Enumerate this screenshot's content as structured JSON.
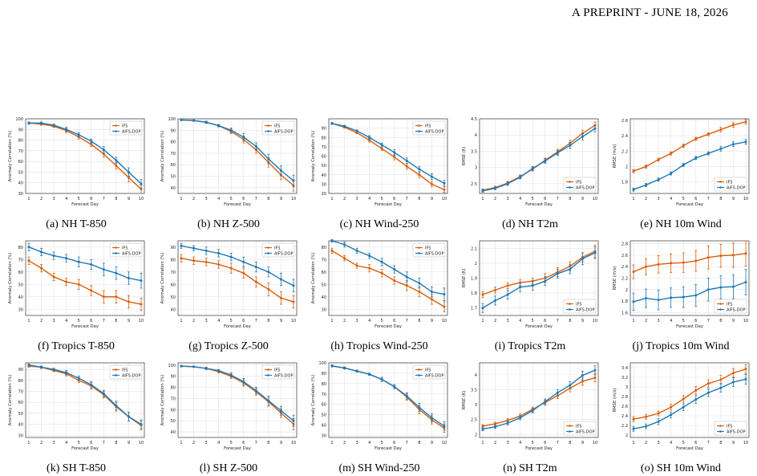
{
  "header": {
    "text": "A PREPRINT - JUNE 18, 2026"
  },
  "colors": {
    "ifs": "#d95f0e",
    "aifs": "#1f78b4"
  },
  "common": {
    "xlabel": "Forecast Day",
    "legend": [
      "IFS",
      "AIFS-DOP"
    ]
  },
  "chart_data": [
    {
      "type": "line",
      "caption": "(a) NH T-850",
      "ylabel": "Anomaly Correlation (%)",
      "ylim": [
        30,
        100
      ],
      "yticks": [
        30,
        40,
        50,
        60,
        70,
        80,
        90,
        100
      ],
      "x": [
        1,
        2,
        3,
        4,
        5,
        6,
        7,
        8,
        9,
        10
      ],
      "series": [
        {
          "name": "IFS",
          "values": [
            96,
            95,
            93,
            89,
            83,
            76,
            67,
            56,
            45,
            34
          ],
          "err": [
            1,
            1,
            1,
            2,
            2,
            2,
            3,
            3,
            4,
            4
          ]
        },
        {
          "name": "AIFS-DOP",
          "values": [
            96,
            96,
            94,
            90,
            85,
            79,
            71,
            61,
            50,
            39
          ],
          "err": [
            1,
            1,
            1,
            2,
            2,
            2,
            3,
            3,
            4,
            4
          ]
        }
      ]
    },
    {
      "type": "line",
      "caption": "(b) NH Z-500",
      "ylabel": "Anomaly Correlation (%)",
      "ylim": [
        35,
        100
      ],
      "yticks": [
        40,
        50,
        60,
        70,
        80,
        90,
        100
      ],
      "x": [
        1,
        2,
        3,
        4,
        5,
        6,
        7,
        8,
        9,
        10
      ],
      "series": [
        {
          "name": "IFS",
          "values": [
            99,
            98.5,
            97,
            94,
            89,
            82,
            73,
            62,
            51,
            42
          ],
          "err": [
            0.5,
            0.5,
            1,
            1,
            2,
            3,
            3,
            4,
            4,
            5
          ]
        },
        {
          "name": "AIFS-DOP",
          "values": [
            99,
            98.5,
            97,
            94,
            90,
            84,
            76,
            65,
            55,
            46
          ],
          "err": [
            0.5,
            0.5,
            1,
            1,
            2,
            3,
            3,
            4,
            4,
            5
          ]
        }
      ]
    },
    {
      "type": "line",
      "caption": "(c) NH Wind-250",
      "ylabel": "Anomaly Correlation (%)",
      "ylim": [
        20,
        100
      ],
      "yticks": [
        20,
        30,
        40,
        50,
        60,
        70,
        80,
        90
      ],
      "x": [
        1,
        2,
        3,
        4,
        5,
        6,
        7,
        8,
        9,
        10
      ],
      "series": [
        {
          "name": "IFS",
          "values": [
            95,
            91,
            85,
            77,
            68,
            59,
            49,
            40,
            30,
            24
          ],
          "err": [
            1,
            1,
            1,
            2,
            2,
            3,
            3,
            3,
            3,
            3
          ]
        },
        {
          "name": "AIFS-DOP",
          "values": [
            95,
            92,
            87,
            80,
            72,
            64,
            55,
            46,
            38,
            31
          ],
          "err": [
            1,
            1,
            1,
            2,
            2,
            3,
            3,
            3,
            3,
            3
          ]
        }
      ]
    },
    {
      "type": "line",
      "caption": "(d) NH T2m",
      "ylabel": "RMSE (K)",
      "ylim": [
        2.2,
        4.5
      ],
      "yticks": [
        2.5,
        3.0,
        3.5,
        4.0,
        4.5
      ],
      "x": [
        1,
        2,
        3,
        4,
        5,
        6,
        7,
        8,
        9,
        10
      ],
      "series": [
        {
          "name": "IFS",
          "values": [
            2.3,
            2.38,
            2.52,
            2.72,
            2.95,
            3.22,
            3.48,
            3.75,
            4.05,
            4.3
          ],
          "err": [
            0.04,
            0.04,
            0.05,
            0.05,
            0.06,
            0.07,
            0.08,
            0.09,
            0.1,
            0.1
          ]
        },
        {
          "name": "AIFS-DOP",
          "values": [
            2.28,
            2.36,
            2.5,
            2.7,
            2.97,
            3.2,
            3.45,
            3.68,
            3.95,
            4.2
          ],
          "err": [
            0.04,
            0.04,
            0.05,
            0.05,
            0.06,
            0.07,
            0.08,
            0.09,
            0.1,
            0.1
          ]
        }
      ]
    },
    {
      "type": "line",
      "caption": "(e) NH 10m Wind",
      "ylabel": "RMSE (m/s)",
      "ylim": [
        1.65,
        2.62
      ],
      "yticks": [
        1.8,
        2.0,
        2.2,
        2.4,
        2.6
      ],
      "x": [
        1,
        2,
        3,
        4,
        5,
        6,
        7,
        8,
        9,
        10
      ],
      "series": [
        {
          "name": "IFS",
          "values": [
            1.94,
            2.0,
            2.09,
            2.17,
            2.27,
            2.36,
            2.42,
            2.48,
            2.54,
            2.58
          ],
          "err": [
            0.02,
            0.02,
            0.02,
            0.02,
            0.02,
            0.02,
            0.02,
            0.03,
            0.03,
            0.03
          ]
        },
        {
          "name": "AIFS-DOP",
          "values": [
            1.7,
            1.76,
            1.83,
            1.91,
            2.02,
            2.11,
            2.17,
            2.23,
            2.29,
            2.32
          ],
          "err": [
            0.02,
            0.02,
            0.02,
            0.02,
            0.02,
            0.02,
            0.02,
            0.03,
            0.03,
            0.03
          ]
        }
      ]
    },
    {
      "type": "line",
      "caption": "(f) Tropics T-850",
      "ylabel": "Anomaly Correlation (%)",
      "ylim": [
        25,
        85
      ],
      "yticks": [
        30,
        40,
        50,
        60,
        70,
        80
      ],
      "x": [
        1,
        2,
        3,
        4,
        5,
        6,
        7,
        8,
        9,
        10
      ],
      "series": [
        {
          "name": "IFS",
          "values": [
            69,
            63,
            56,
            52,
            50,
            45,
            40,
            40,
            36,
            34
          ],
          "err": [
            3,
            3,
            3,
            3,
            4,
            4,
            5,
            5,
            5,
            5
          ]
        },
        {
          "name": "AIFS-DOP",
          "values": [
            80,
            76,
            73,
            71,
            68,
            66,
            62,
            59,
            55,
            53
          ],
          "err": [
            3,
            3,
            3,
            3,
            4,
            4,
            5,
            5,
            5,
            6
          ]
        }
      ]
    },
    {
      "type": "line",
      "caption": "(g) Tropics Z-500",
      "ylabel": "Anomaly Correlation (%)",
      "ylim": [
        35,
        95
      ],
      "yticks": [
        40,
        50,
        60,
        70,
        80,
        90
      ],
      "x": [
        1,
        2,
        3,
        4,
        5,
        6,
        7,
        8,
        9,
        10
      ],
      "series": [
        {
          "name": "IFS",
          "values": [
            81,
            79,
            78,
            76,
            73,
            69,
            62,
            56,
            49,
            46
          ],
          "err": [
            3,
            3,
            3,
            3,
            4,
            4,
            4,
            5,
            5,
            5
          ]
        },
        {
          "name": "AIFS-DOP",
          "values": [
            91,
            89,
            87,
            85,
            82,
            78,
            74,
            70,
            64,
            59
          ],
          "err": [
            2,
            2,
            3,
            3,
            3,
            4,
            4,
            4,
            5,
            5
          ]
        }
      ]
    },
    {
      "type": "line",
      "caption": "(h) Tropics Wind-250",
      "ylabel": "Anomaly Correlation (%)",
      "ylim": [
        25,
        85
      ],
      "yticks": [
        30,
        40,
        50,
        60,
        70,
        80
      ],
      "x": [
        1,
        2,
        3,
        4,
        5,
        6,
        7,
        8,
        9,
        10
      ],
      "series": [
        {
          "name": "IFS",
          "values": [
            77,
            71,
            65,
            63,
            59,
            53,
            49,
            44,
            38,
            32
          ],
          "err": [
            2,
            2,
            2,
            3,
            3,
            3,
            4,
            4,
            4,
            4
          ]
        },
        {
          "name": "AIFS-DOP",
          "values": [
            85,
            82,
            77,
            73,
            68,
            62,
            56,
            51,
            44,
            42
          ],
          "err": [
            1,
            2,
            2,
            2,
            3,
            3,
            4,
            4,
            4,
            5
          ]
        }
      ]
    },
    {
      "type": "line",
      "caption": "(i) Tropics T2m",
      "ylabel": "RMSE (K)",
      "ylim": [
        1.65,
        2.15
      ],
      "yticks": [
        1.7,
        1.8,
        1.9,
        2.0,
        2.1
      ],
      "x": [
        1,
        2,
        3,
        4,
        5,
        6,
        7,
        8,
        9,
        10
      ],
      "series": [
        {
          "name": "IFS",
          "values": [
            1.79,
            1.82,
            1.85,
            1.87,
            1.88,
            1.9,
            1.94,
            1.98,
            2.04,
            2.08
          ],
          "err": [
            0.02,
            0.02,
            0.02,
            0.02,
            0.02,
            0.03,
            0.03,
            0.03,
            0.03,
            0.04
          ]
        },
        {
          "name": "AIFS-DOP",
          "values": [
            1.7,
            1.75,
            1.79,
            1.84,
            1.85,
            1.88,
            1.93,
            1.96,
            2.03,
            2.07
          ],
          "err": [
            0.03,
            0.03,
            0.03,
            0.03,
            0.03,
            0.03,
            0.03,
            0.03,
            0.04,
            0.04
          ]
        }
      ]
    },
    {
      "type": "line",
      "caption": "(j) Tropics 10m Wind",
      "ylabel": "RMSE (m/s)",
      "ylim": [
        1.55,
        2.85
      ],
      "yticks": [
        1.6,
        1.8,
        2.0,
        2.2,
        2.4,
        2.6,
        2.8
      ],
      "x": [
        1,
        2,
        3,
        4,
        5,
        6,
        7,
        8,
        9,
        10
      ],
      "series": [
        {
          "name": "IFS",
          "values": [
            2.31,
            2.4,
            2.44,
            2.46,
            2.47,
            2.5,
            2.56,
            2.59,
            2.6,
            2.63
          ],
          "err": [
            0.12,
            0.14,
            0.15,
            0.16,
            0.17,
            0.18,
            0.2,
            0.2,
            0.21,
            0.22
          ]
        },
        {
          "name": "AIFS-DOP",
          "values": [
            1.79,
            1.85,
            1.82,
            1.86,
            1.87,
            1.9,
            2.0,
            2.04,
            2.05,
            2.13
          ],
          "err": [
            0.15,
            0.16,
            0.17,
            0.17,
            0.18,
            0.19,
            0.2,
            0.2,
            0.21,
            0.22
          ]
        }
      ]
    },
    {
      "type": "line",
      "caption": "(k) SH T-850",
      "ylabel": "Anomaly Correlation (%)",
      "ylim": [
        28,
        96
      ],
      "yticks": [
        30,
        40,
        50,
        60,
        70,
        80,
        90
      ],
      "x": [
        1,
        2,
        3,
        4,
        5,
        6,
        7,
        8,
        9,
        10
      ],
      "series": [
        {
          "name": "IFS",
          "values": [
            93,
            92,
            89,
            86,
            80,
            75,
            67,
            56,
            47,
            39
          ],
          "err": [
            1,
            1,
            1,
            2,
            2,
            3,
            3,
            4,
            4,
            4
          ]
        },
        {
          "name": "AIFS-DOP",
          "values": [
            94,
            92,
            90,
            87,
            82,
            76,
            68,
            57,
            47,
            40
          ],
          "err": [
            1,
            1,
            1,
            2,
            2,
            3,
            3,
            4,
            4,
            4
          ]
        }
      ]
    },
    {
      "type": "line",
      "caption": "(l) SH Z-500",
      "ylabel": "Anomaly Correlation (%)",
      "ylim": [
        35,
        102
      ],
      "yticks": [
        40,
        50,
        60,
        70,
        80,
        90,
        100
      ],
      "x": [
        1,
        2,
        3,
        4,
        5,
        6,
        7,
        8,
        9,
        10
      ],
      "series": [
        {
          "name": "IFS",
          "values": [
            99,
            98.5,
            97,
            94,
            90,
            84,
            76,
            67,
            57,
            47
          ],
          "err": [
            0.5,
            0.5,
            1,
            1,
            2,
            3,
            3,
            4,
            4,
            5
          ]
        },
        {
          "name": "AIFS-DOP",
          "values": [
            99,
            98.5,
            97,
            95,
            91,
            85,
            77,
            68,
            59,
            50
          ],
          "err": [
            0.5,
            0.5,
            1,
            1,
            2,
            3,
            3,
            4,
            4,
            5
          ]
        }
      ]
    },
    {
      "type": "line",
      "caption": "(m) SH Wind-250",
      "ylabel": "Anomaly Correlation (%)",
      "ylim": [
        28,
        100
      ],
      "yticks": [
        30,
        40,
        50,
        60,
        70,
        80,
        90,
        100
      ],
      "x": [
        1,
        2,
        3,
        4,
        5,
        6,
        7,
        8,
        9,
        10
      ],
      "series": [
        {
          "name": "IFS",
          "values": [
            97,
            95,
            92,
            89,
            84,
            77,
            67,
            55,
            45,
            37
          ],
          "err": [
            1,
            1,
            1,
            1,
            2,
            2,
            3,
            4,
            4,
            4
          ]
        },
        {
          "name": "AIFS-DOP",
          "values": [
            97,
            95,
            92,
            89,
            84,
            77,
            68,
            57,
            47,
            39
          ],
          "err": [
            1,
            1,
            1,
            1,
            2,
            2,
            3,
            4,
            4,
            4
          ]
        }
      ]
    },
    {
      "type": "line",
      "caption": "(n) SH T2m",
      "ylabel": "RMSE (K)",
      "ylim": [
        1.9,
        4.4
      ],
      "yticks": [
        2.0,
        2.5,
        3.0,
        3.5,
        4.0
      ],
      "x": [
        1,
        2,
        3,
        4,
        5,
        6,
        7,
        8,
        9,
        10
      ],
      "series": [
        {
          "name": "IFS",
          "values": [
            2.28,
            2.36,
            2.47,
            2.62,
            2.84,
            3.07,
            3.3,
            3.55,
            3.78,
            3.9
          ],
          "err": [
            0.05,
            0.05,
            0.06,
            0.07,
            0.08,
            0.09,
            0.1,
            0.12,
            0.13,
            0.14
          ]
        },
        {
          "name": "AIFS-DOP",
          "values": [
            2.18,
            2.26,
            2.38,
            2.56,
            2.8,
            3.1,
            3.4,
            3.65,
            3.98,
            4.15
          ],
          "err": [
            0.05,
            0.05,
            0.06,
            0.07,
            0.08,
            0.09,
            0.1,
            0.12,
            0.14,
            0.15
          ]
        }
      ]
    },
    {
      "type": "line",
      "caption": "(o) SH 10m Wind",
      "ylabel": "RMSE (m/s)",
      "ylim": [
        1.95,
        3.5
      ],
      "yticks": [
        2.0,
        2.2,
        2.4,
        2.6,
        2.8,
        3.0,
        3.2,
        3.4
      ],
      "x": [
        1,
        2,
        3,
        4,
        5,
        6,
        7,
        8,
        9,
        10
      ],
      "series": [
        {
          "name": "IFS",
          "values": [
            2.33,
            2.38,
            2.45,
            2.58,
            2.75,
            2.93,
            3.07,
            3.15,
            3.29,
            3.37
          ],
          "err": [
            0.05,
            0.05,
            0.05,
            0.06,
            0.07,
            0.08,
            0.08,
            0.09,
            0.09,
            0.09
          ]
        },
        {
          "name": "AIFS-DOP",
          "values": [
            2.13,
            2.18,
            2.28,
            2.42,
            2.58,
            2.74,
            2.88,
            2.98,
            3.1,
            3.16
          ],
          "err": [
            0.05,
            0.05,
            0.06,
            0.06,
            0.07,
            0.08,
            0.08,
            0.09,
            0.09,
            0.1
          ]
        }
      ]
    }
  ]
}
